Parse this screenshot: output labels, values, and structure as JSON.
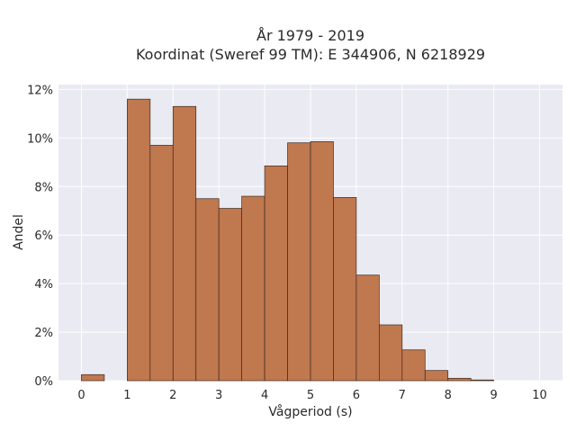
{
  "chart_data": {
    "type": "bar",
    "title_line1": "År 1979 - 2019",
    "title_line2": "Koordinat (Sweref 99 TM): E 344906, N 6218929",
    "xlabel": "Vågperiod (s)",
    "ylabel": "Andel",
    "bin_width": 0.5,
    "bins": [
      {
        "start": 0.0,
        "value": 0.25
      },
      {
        "start": 0.5,
        "value": 0.0
      },
      {
        "start": 1.0,
        "value": 11.6
      },
      {
        "start": 1.5,
        "value": 9.7
      },
      {
        "start": 2.0,
        "value": 11.3
      },
      {
        "start": 2.5,
        "value": 7.5
      },
      {
        "start": 3.0,
        "value": 7.1
      },
      {
        "start": 3.5,
        "value": 7.6
      },
      {
        "start": 4.0,
        "value": 8.85
      },
      {
        "start": 4.5,
        "value": 9.8
      },
      {
        "start": 5.0,
        "value": 9.85
      },
      {
        "start": 5.5,
        "value": 7.55
      },
      {
        "start": 6.0,
        "value": 4.35
      },
      {
        "start": 6.5,
        "value": 2.3
      },
      {
        "start": 7.0,
        "value": 1.27
      },
      {
        "start": 7.5,
        "value": 0.42
      },
      {
        "start": 8.0,
        "value": 0.1
      },
      {
        "start": 8.5,
        "value": 0.03
      }
    ],
    "xlim": [
      -0.5,
      10.5
    ],
    "ylim": [
      0,
      12.2
    ],
    "x_ticks": [
      0,
      1,
      2,
      3,
      4,
      5,
      6,
      7,
      8,
      9,
      10
    ],
    "y_ticks": [
      0,
      2,
      4,
      6,
      8,
      10,
      12
    ],
    "y_tick_labels": [
      "0%",
      "2%",
      "4%",
      "6%",
      "8%",
      "10%",
      "12%"
    ],
    "grid": true,
    "colors": {
      "bar_fill": "#c0784f",
      "bar_edge": "#3d2a1f",
      "plot_background": "#eaeaf2",
      "grid": "#ffffff"
    }
  }
}
